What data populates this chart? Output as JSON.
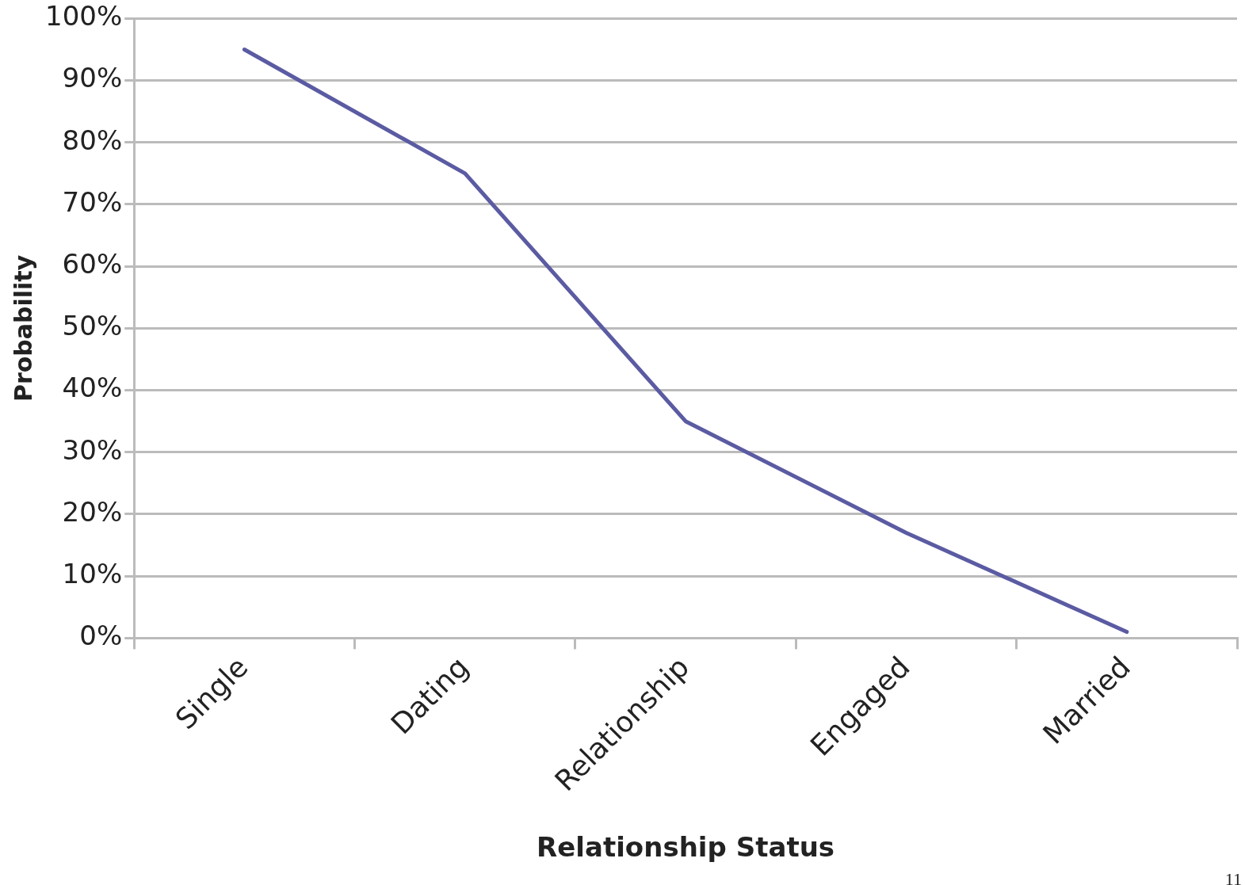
{
  "chart_data": {
    "type": "line",
    "xlabel": "Relationship Status",
    "ylabel": "Probability",
    "categories": [
      "Single",
      "Dating",
      "Relationship",
      "Engaged",
      "Married"
    ],
    "series": [
      {
        "color": "#5b5ba3",
        "values": [
          95,
          75,
          35,
          17,
          1
        ]
      }
    ],
    "ylim": [
      0,
      100
    ],
    "yticks": [
      {
        "value": 0,
        "label": "0%"
      },
      {
        "value": 10,
        "label": "10%"
      },
      {
        "value": 20,
        "label": "20%"
      },
      {
        "value": 30,
        "label": "30%"
      },
      {
        "value": 40,
        "label": "40%"
      },
      {
        "value": 50,
        "label": "50%"
      },
      {
        "value": 60,
        "label": "60%"
      },
      {
        "value": 70,
        "label": "70%"
      },
      {
        "value": 80,
        "label": "80%"
      },
      {
        "value": 90,
        "label": "90%"
      },
      {
        "value": 100,
        "label": "100%"
      }
    ],
    "grid": "y",
    "marker": "none",
    "line_style": "solid",
    "legend": false,
    "annotations": [
      "11"
    ]
  }
}
